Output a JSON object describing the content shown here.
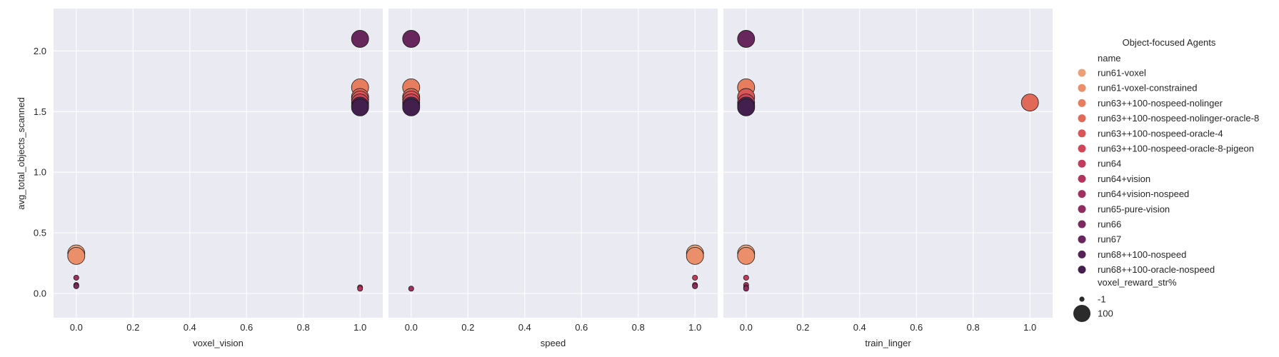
{
  "chart_data": {
    "type": "scatter",
    "ylabel": "avg_total_objects_scanned",
    "ylim": [
      -0.2,
      2.35
    ],
    "yticks": [
      0.0,
      0.5,
      1.0,
      1.5,
      2.0
    ],
    "ytick_labels": [
      "0.0",
      "0.5",
      "1.0",
      "1.5",
      "2.0"
    ],
    "xlim": [
      -0.08,
      1.08
    ],
    "xticks": [
      0.0,
      0.2,
      0.4,
      0.6,
      0.8,
      1.0
    ],
    "xtick_labels": [
      "0.0",
      "0.2",
      "0.4",
      "0.6",
      "0.8",
      "1.0"
    ],
    "grid": true,
    "panels": [
      {
        "xlabel": "voxel_vision",
        "points": [
          {
            "name": "run61-voxel",
            "x": 0.0,
            "y": 0.33,
            "size": 100
          },
          {
            "name": "run61-voxel-constrained",
            "x": 0.0,
            "y": 0.31,
            "size": 100
          },
          {
            "name": "run64+vision-nospeed",
            "x": 0.0,
            "y": 0.13,
            "size": -1
          },
          {
            "name": "run65-pure-vision",
            "x": 0.0,
            "y": 0.07,
            "size": -1
          },
          {
            "name": "run66",
            "x": 0.0,
            "y": 0.06,
            "size": -1
          },
          {
            "name": "run63++100-nospeed-nolinger",
            "x": 1.0,
            "y": 1.7,
            "size": 100
          },
          {
            "name": "run63++100-nospeed-nolinger-oracle-8",
            "x": 1.0,
            "y": 1.62,
            "size": 100
          },
          {
            "name": "run63++100-nospeed-oracle-4",
            "x": 1.0,
            "y": 1.6,
            "size": 100
          },
          {
            "name": "run63++100-nospeed-oracle-8-pigeon",
            "x": 1.0,
            "y": 1.575,
            "size": 100
          },
          {
            "name": "run68++100-nospeed",
            "x": 1.0,
            "y": 1.55,
            "size": 100
          },
          {
            "name": "run68++100-oracle-nospeed",
            "x": 1.0,
            "y": 1.535,
            "size": 100
          },
          {
            "name": "run67",
            "x": 1.0,
            "y": 2.1,
            "size": 100
          },
          {
            "name": "run64",
            "x": 1.0,
            "y": 0.05,
            "size": -1
          },
          {
            "name": "run64+vision",
            "x": 1.0,
            "y": 0.04,
            "size": -1
          }
        ]
      },
      {
        "xlabel": "speed",
        "points": [
          {
            "name": "run67",
            "x": 0.0,
            "y": 2.1,
            "size": 100
          },
          {
            "name": "run63++100-nospeed-nolinger",
            "x": 0.0,
            "y": 1.7,
            "size": 100
          },
          {
            "name": "run63++100-nospeed-nolinger-oracle-8",
            "x": 0.0,
            "y": 1.62,
            "size": 100
          },
          {
            "name": "run63++100-nospeed-oracle-4",
            "x": 0.0,
            "y": 1.6,
            "size": 100
          },
          {
            "name": "run63++100-nospeed-oracle-8-pigeon",
            "x": 0.0,
            "y": 1.575,
            "size": 100
          },
          {
            "name": "run68++100-nospeed",
            "x": 0.0,
            "y": 1.55,
            "size": 100
          },
          {
            "name": "run68++100-oracle-nospeed",
            "x": 0.0,
            "y": 1.535,
            "size": 100
          },
          {
            "name": "run64+vision-nospeed",
            "x": 0.0,
            "y": 0.04,
            "size": -1
          },
          {
            "name": "run61-voxel",
            "x": 1.0,
            "y": 0.33,
            "size": 100
          },
          {
            "name": "run61-voxel-constrained",
            "x": 1.0,
            "y": 0.31,
            "size": 100
          },
          {
            "name": "run64",
            "x": 1.0,
            "y": 0.13,
            "size": -1
          },
          {
            "name": "run64+vision",
            "x": 1.0,
            "y": 0.07,
            "size": -1
          },
          {
            "name": "run65-pure-vision",
            "x": 1.0,
            "y": 0.06,
            "size": -1
          }
        ]
      },
      {
        "xlabel": "train_linger",
        "points": [
          {
            "name": "run67",
            "x": 0.0,
            "y": 2.1,
            "size": 100
          },
          {
            "name": "run63++100-nospeed-nolinger",
            "x": 0.0,
            "y": 1.7,
            "size": 100
          },
          {
            "name": "run63++100-nospeed-oracle-4",
            "x": 0.0,
            "y": 1.62,
            "size": 100
          },
          {
            "name": "run63++100-nospeed-oracle-8-pigeon",
            "x": 0.0,
            "y": 1.575,
            "size": 100
          },
          {
            "name": "run68++100-nospeed",
            "x": 0.0,
            "y": 1.55,
            "size": 100
          },
          {
            "name": "run68++100-oracle-nospeed",
            "x": 0.0,
            "y": 1.535,
            "size": 100
          },
          {
            "name": "run61-voxel",
            "x": 0.0,
            "y": 0.33,
            "size": 100
          },
          {
            "name": "run61-voxel-constrained",
            "x": 0.0,
            "y": 0.31,
            "size": 100
          },
          {
            "name": "run64",
            "x": 0.0,
            "y": 0.13,
            "size": -1
          },
          {
            "name": "run64+vision",
            "x": 0.0,
            "y": 0.07,
            "size": -1
          },
          {
            "name": "run64+vision-nospeed",
            "x": 0.0,
            "y": 0.05,
            "size": -1
          },
          {
            "name": "run65-pure-vision",
            "x": 0.0,
            "y": 0.04,
            "size": -1
          },
          {
            "name": "run63++100-nospeed-nolinger-oracle-8",
            "x": 1.0,
            "y": 1.575,
            "size": 100
          }
        ]
      }
    ],
    "legend": {
      "placement": "right",
      "title": "Object-focused Agents",
      "hue_title": "name",
      "size_title": "voxel_reward_str%",
      "names": [
        {
          "label": "run61-voxel",
          "color": "#eba078"
        },
        {
          "label": "run61-voxel-constrained",
          "color": "#ea8f6a"
        },
        {
          "label": "run63++100-nospeed-nolinger",
          "color": "#e67d5e"
        },
        {
          "label": "run63++100-nospeed-nolinger-oracle-8",
          "color": "#e06957"
        },
        {
          "label": "run63++100-nospeed-oracle-4",
          "color": "#d95656"
        },
        {
          "label": "run63++100-nospeed-oracle-8-pigeon",
          "color": "#ce4658"
        },
        {
          "label": "run64",
          "color": "#c03b5c"
        },
        {
          "label": "run64+vision",
          "color": "#b1355e"
        },
        {
          "label": "run64+vision-nospeed",
          "color": "#a0305f"
        },
        {
          "label": "run65-pure-vision",
          "color": "#8e2d60"
        },
        {
          "label": "run66",
          "color": "#7b2a5f"
        },
        {
          "label": "run67",
          "color": "#68275c"
        },
        {
          "label": "run68++100-nospeed",
          "color": "#552356"
        },
        {
          "label": "run68++100-oracle-nospeed",
          "color": "#431f4e"
        }
      ],
      "sizes": [
        {
          "label": "-1",
          "value": -1
        },
        {
          "label": "100",
          "value": 100
        }
      ]
    }
  }
}
